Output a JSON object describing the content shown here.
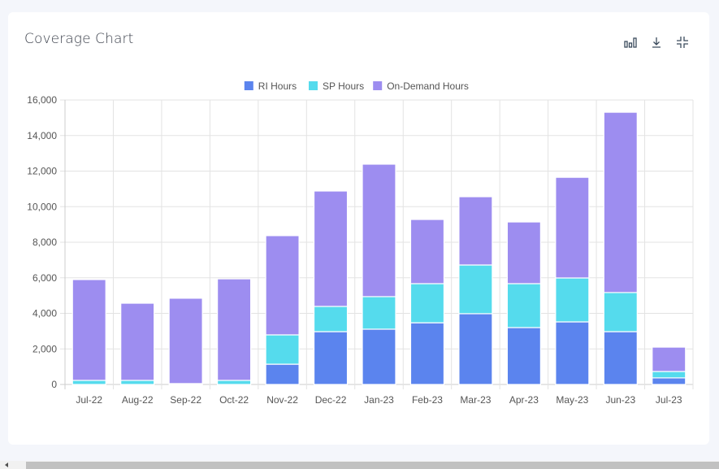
{
  "card": {
    "title": "Coverage Chart"
  },
  "toolbar": {
    "icons": [
      "bar-chart-icon",
      "download-icon",
      "collapse-icon"
    ]
  },
  "chart_data": {
    "type": "bar",
    "stacked": true,
    "title": "",
    "xlabel": "",
    "ylabel": "",
    "ylim": [
      0,
      16000
    ],
    "yticks": [
      0,
      2000,
      4000,
      6000,
      8000,
      10000,
      12000,
      14000,
      16000
    ],
    "ytick_labels": [
      "0",
      "2,000",
      "4,000",
      "6,000",
      "8,000",
      "10,000",
      "12,000",
      "14,000",
      "16,000"
    ],
    "grid": true,
    "legend_position": "top",
    "categories": [
      "Jul-22",
      "Aug-22",
      "Sep-22",
      "Oct-22",
      "Nov-22",
      "Dec-22",
      "Jan-23",
      "Feb-23",
      "Mar-23",
      "Apr-23",
      "May-23",
      "Jun-23",
      "Jul-23"
    ],
    "series": [
      {
        "name": "RI Hours",
        "color": "#5b84ee",
        "values": [
          0,
          0,
          0,
          0,
          1140,
          2970,
          3110,
          3470,
          3980,
          3200,
          3520,
          2970,
          370
        ]
      },
      {
        "name": "SP Hours",
        "color": "#55dbed",
        "values": [
          230,
          230,
          50,
          230,
          1650,
          1420,
          1830,
          2200,
          2740,
          2470,
          2470,
          2200,
          360
        ]
      },
      {
        "name": "On-Demand Hours",
        "color": "#9d8df0",
        "values": [
          5670,
          4340,
          4800,
          5710,
          5580,
          6490,
          7450,
          3610,
          3840,
          3470,
          5660,
          10140,
          1370
        ]
      }
    ]
  }
}
